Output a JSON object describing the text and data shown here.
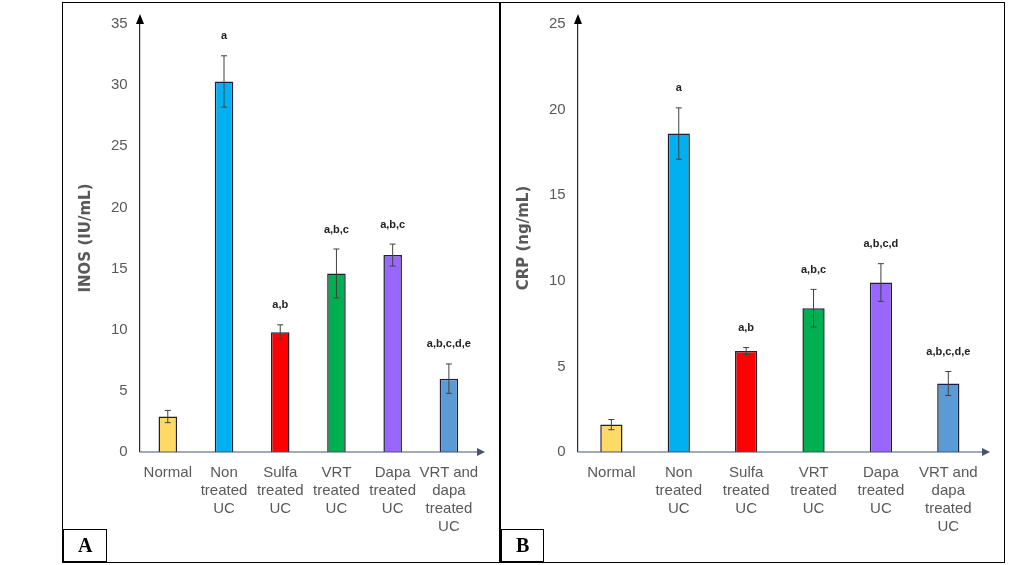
{
  "chart_data": [
    {
      "type": "bar",
      "ylabel": "INOS (IU/mL)",
      "categories": [
        "Normal",
        "Non\ntreated\nUC",
        "Sulfa\ntreated\nUC",
        "VRT\ntreated\nUC",
        "Dapa\ntreated\nUC",
        "VRT and\ndapa\ntreated\nUC"
      ],
      "values": [
        2.9,
        30.3,
        9.8,
        14.6,
        16.1,
        6.0
      ],
      "errors": [
        0.5,
        2.1,
        0.6,
        2.0,
        0.9,
        1.2
      ],
      "colors": [
        "#ffd966",
        "#00b0f0",
        "#ff0000",
        "#00b050",
        "#9966ff",
        "#5b9bd5"
      ],
      "ylim": [
        0,
        35
      ],
      "yticks": [
        0,
        5,
        10,
        15,
        20,
        25,
        30,
        35
      ],
      "grid": false,
      "legend": false,
      "annotations": [
        {
          "text": "a",
          "x": "Non\ntreated\nUC",
          "y": 32.4
        },
        {
          "text": "a,b",
          "x": "Sulfa\ntreated\nUC",
          "y": 10.4
        },
        {
          "text": "a,b,c",
          "x": "VRT\ntreated\nUC",
          "y": 16.6
        },
        {
          "text": "a,b,c",
          "x": "Dapa\ntreated\nUC",
          "y": 17.0
        },
        {
          "text": "a,b,c,d,e",
          "x": "VRT and\ndapa\ntreated\nUC",
          "y": 7.2
        },
        "A"
      ]
    },
    {
      "type": "bar",
      "ylabel": "CRP (ng/mL)",
      "categories": [
        "Normal",
        "Non\ntreated\nUC",
        "Sulfa\ntreated\nUC",
        "VRT\ntreated\nUC",
        "Dapa\ntreated\nUC",
        "VRT and\ndapa\ntreated\nUC"
      ],
      "values": [
        1.6,
        18.6,
        5.9,
        8.4,
        9.9,
        4.0
      ],
      "errors": [
        0.3,
        1.5,
        0.2,
        1.1,
        1.1,
        0.7
      ],
      "colors": [
        "#ffd966",
        "#00b0f0",
        "#ff0000",
        "#00b050",
        "#9966ff",
        "#5b9bd5"
      ],
      "ylim": [
        0,
        25
      ],
      "yticks": [
        0,
        5,
        10,
        15,
        20,
        25
      ],
      "grid": false,
      "legend": false,
      "annotations": [
        {
          "text": "a",
          "x": "Non\ntreated\nUC",
          "y": 20.1
        },
        {
          "text": "a,b",
          "x": "Sulfa\ntreated\nUC",
          "y": 6.1
        },
        {
          "text": "a,b,c",
          "x": "VRT\ntreated\nUC",
          "y": 9.5
        },
        {
          "text": "a,b,c,d",
          "x": "Dapa\ntreated\nUC",
          "y": 11.0
        },
        {
          "text": "a,b,c,d,e",
          "x": "VRT and\ndapa\ntreated\nUC",
          "y": 4.7
        },
        "B"
      ]
    }
  ]
}
